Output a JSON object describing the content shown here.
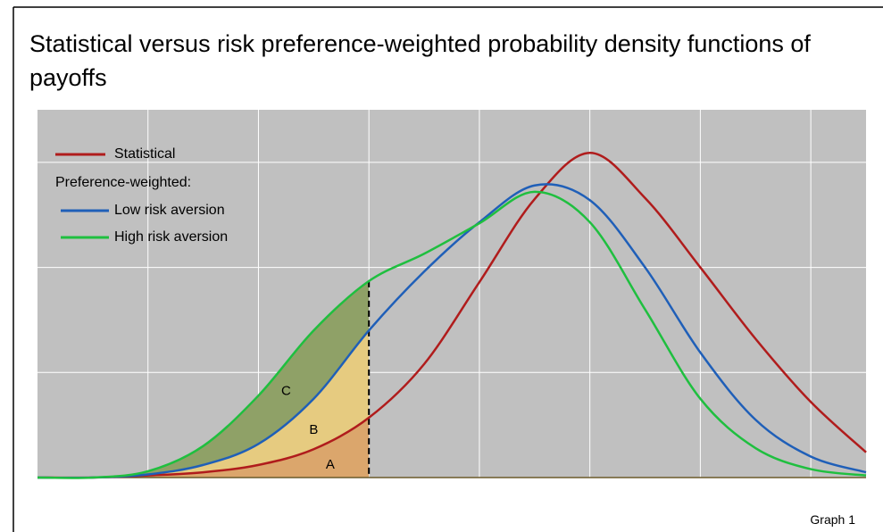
{
  "chart_data": {
    "type": "line",
    "title": "Statistical versus risk preference-weighted probability density functions of payoffs",
    "footnote": "Graph 1",
    "legend_heading": "Preference-weighted:",
    "x": [
      0,
      0.5,
      1,
      1.5,
      2,
      2.5,
      3,
      3.5,
      4,
      4.5,
      5,
      5.5,
      6,
      6.5,
      7,
      7.5
    ],
    "series": [
      {
        "name": "Statistical",
        "color": "#b01c1c",
        "values": [
          0,
          0,
          0.02,
          0.05,
          0.12,
          0.27,
          0.57,
          1.08,
          1.86,
          2.65,
          3.09,
          2.66,
          2.0,
          1.32,
          0.72,
          0.24
        ]
      },
      {
        "name": "Low risk aversion",
        "color": "#1f5fb8",
        "values": [
          0,
          0,
          0.03,
          0.12,
          0.32,
          0.75,
          1.4,
          1.96,
          2.43,
          2.78,
          2.64,
          2.0,
          1.19,
          0.55,
          0.2,
          0.05
        ]
      },
      {
        "name": "High risk aversion",
        "color": "#1fbf3f",
        "values": [
          0,
          0,
          0.06,
          0.3,
          0.78,
          1.4,
          1.87,
          2.13,
          2.42,
          2.72,
          2.43,
          1.6,
          0.75,
          0.28,
          0.08,
          0.02
        ]
      }
    ],
    "areas": [
      {
        "label": "A",
        "color": "#dba66c"
      },
      {
        "label": "B",
        "color": "#e6cb80"
      },
      {
        "label": "C",
        "color": "#8fa167"
      }
    ],
    "shade_to": 3,
    "xlim": [
      0,
      7.5
    ],
    "ylim": [
      0,
      3.5
    ],
    "xticks": [
      1,
      2,
      3,
      4,
      5,
      6,
      7
    ],
    "yticks": [
      1,
      2,
      3
    ],
    "grid": true,
    "legend": "upper left",
    "plot_color": "#c0c0c0"
  }
}
